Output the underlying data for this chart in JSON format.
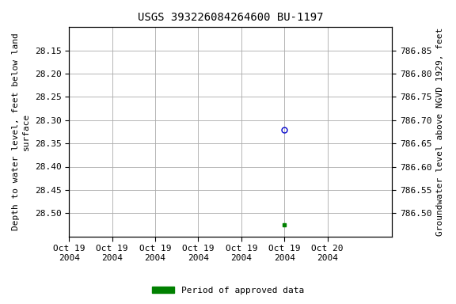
{
  "title": "USGS 393226084264600 BU-1197",
  "ylabel_left": "Depth to water level, feet below land\nsurface",
  "ylabel_right": "Groundwater level above NGVD 1929, feet",
  "ylim_left_top": 28.1,
  "ylim_left_bottom": 28.55,
  "ylim_right_bottom": 786.45,
  "ylim_right_top": 786.9,
  "yticks_left": [
    28.15,
    28.2,
    28.25,
    28.3,
    28.35,
    28.4,
    28.45,
    28.5
  ],
  "yticks_right": [
    786.5,
    786.55,
    786.6,
    786.65,
    786.7,
    786.75,
    786.8,
    786.85
  ],
  "blue_x_hour": 20,
  "blue_y": 28.32,
  "green_x_hour": 20,
  "green_y": 28.525,
  "point_blue_color": "#0000cc",
  "point_green_color": "#008000",
  "background_color": "#ffffff",
  "grid_color": "#aaaaaa",
  "title_fontsize": 10,
  "axis_label_fontsize": 8,
  "tick_fontsize": 8,
  "legend_label": "Period of approved data",
  "legend_color": "#008000",
  "xtick_hours": [
    0,
    4,
    8,
    12,
    16,
    20,
    24
  ],
  "xtick_labels": [
    "Oct 19\n2004",
    "Oct 19\n2004",
    "Oct 19\n2004",
    "Oct 19\n2004",
    "Oct 19\n2004",
    "Oct 19\n2004",
    "Oct 20\n2004"
  ]
}
